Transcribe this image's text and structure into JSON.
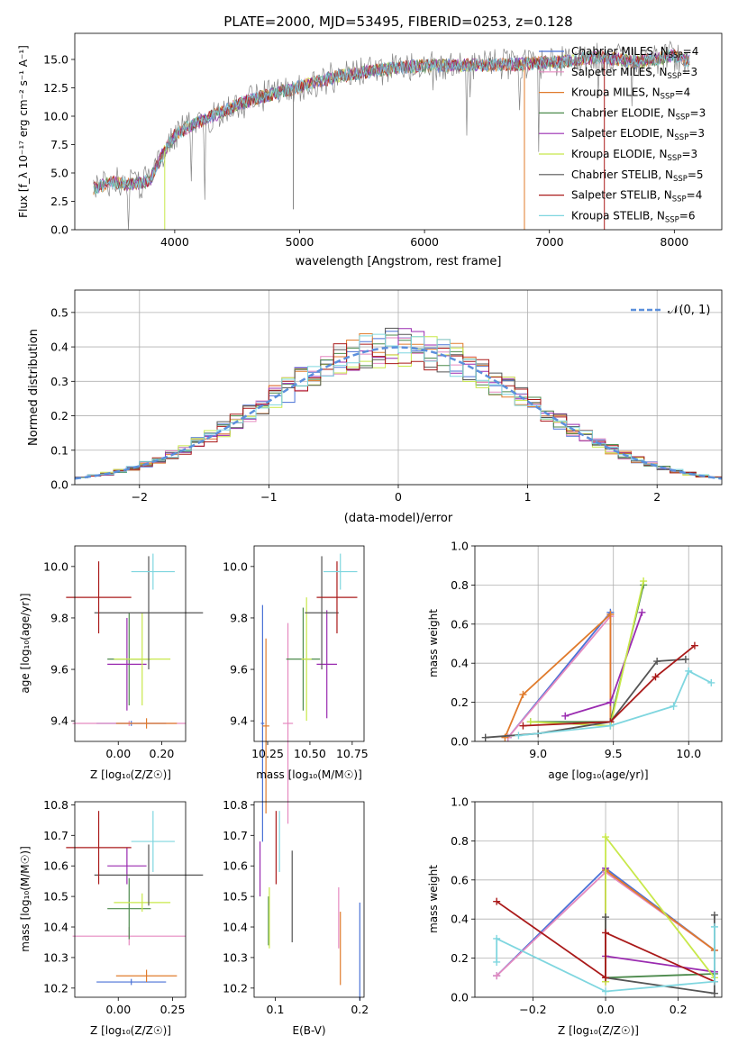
{
  "colors": {
    "chabrier_miles": "#4a72d6",
    "salpeter_miles": "#e58ac0",
    "kroupa_miles": "#e07b2c",
    "chabrier_elodie": "#4c8a4c",
    "salpeter_elodie": "#9a2bb0",
    "kroupa_elodie": "#c8e84a",
    "chabrier_stelib": "#555555",
    "salpeter_stelib": "#aa1a1a",
    "kroupa_stelib": "#7fd6df",
    "normal_curve": "#5b8fdc",
    "spectrum_grey": "#7f7f7f"
  },
  "chart_data": [
    {
      "id": "spectrum",
      "type": "line",
      "title": "PLATE=2000, MJD=53495, FIBERID=0253, z=0.128",
      "xlabel": "wavelength [Angstrom, rest frame]",
      "ylabel": "Flux [f_λ 10⁻¹⁷ erg cm⁻² s⁻¹ A⁻¹]",
      "xlim": [
        3200,
        8380
      ],
      "ylim": [
        0,
        17.3
      ],
      "xticks": [
        4000,
        5000,
        6000,
        7000,
        8000
      ],
      "yticks": [
        0.0,
        2.5,
        5.0,
        7.5,
        10.0,
        12.5,
        15.0
      ],
      "continuum": {
        "x": [
          3350,
          3500,
          3650,
          3800,
          3900,
          4000,
          4100,
          4300,
          4500,
          4700,
          5000,
          5300,
          5600,
          5900,
          6200,
          6500,
          6800,
          7100,
          7400,
          7700,
          8000,
          8100
        ],
        "y": [
          3.6,
          4.2,
          4.0,
          4.3,
          6.6,
          8.3,
          9.0,
          10.0,
          11.0,
          11.7,
          12.6,
          13.5,
          14.0,
          14.4,
          14.5,
          14.5,
          14.6,
          14.8,
          15.2,
          14.8,
          15.3,
          14.9
        ]
      },
      "legend": [
        {
          "label": "Chabrier MILES, N",
          "sub": "SSP",
          "value": "=4",
          "color_key": "chabrier_miles"
        },
        {
          "label": "Salpeter MILES, N",
          "sub": "SSP",
          "value": "=3",
          "color_key": "salpeter_miles"
        },
        {
          "label": "Kroupa MILES, N",
          "sub": "SSP",
          "value": "=4",
          "color_key": "kroupa_miles"
        },
        {
          "label": "Chabrier ELODIE, N",
          "sub": "SSP",
          "value": "=3",
          "color_key": "chabrier_elodie"
        },
        {
          "label": "Salpeter ELODIE, N",
          "sub": "SSP",
          "value": "=3",
          "color_key": "salpeter_elodie"
        },
        {
          "label": "Kroupa ELODIE, N",
          "sub": "SSP",
          "value": "=3",
          "color_key": "kroupa_elodie"
        },
        {
          "label": "Chabrier STELIB, N",
          "sub": "SSP",
          "value": "=5",
          "color_key": "chabrier_stelib"
        },
        {
          "label": "Salpeter STELIB, N",
          "sub": "SSP",
          "value": "=4",
          "color_key": "salpeter_stelib"
        },
        {
          "label": "Kroupa STELIB, N",
          "sub": "SSP",
          "value": "=6",
          "color_key": "kroupa_stelib"
        }
      ]
    },
    {
      "id": "residuals",
      "type": "line",
      "xlabel": "(data-model)/error",
      "ylabel": "Normed distribution",
      "xlim": [
        -2.5,
        2.5
      ],
      "ylim": [
        0,
        0.565
      ],
      "xticks": [
        -2,
        -1,
        0,
        1,
        2
      ],
      "yticks": [
        0.0,
        0.1,
        0.2,
        0.3,
        0.4,
        0.5
      ],
      "grid": true,
      "legend_label": "𝒩(0, 1)",
      "legend_position": "top-right",
      "bin_width": 0.1,
      "gaussian": {
        "mean": 0,
        "sigma": 1
      }
    },
    {
      "id": "z_vs_age",
      "type": "errorbar",
      "xlabel": "Z [log₁₀(Z/Z☉)]",
      "ylabel": "age  [log₁₀(age/yr)]",
      "xlim": [
        -0.2,
        0.31
      ],
      "ylim": [
        9.32,
        10.08
      ],
      "xticks": [
        0.0,
        0.2
      ],
      "yticks": [
        9.4,
        9.6,
        9.8,
        10.0
      ],
      "points": [
        {
          "k": "chabrier_miles",
          "x": 0.06,
          "xerr": 0.16,
          "y": 9.39,
          "yerr": 0.01
        },
        {
          "k": "salpeter_miles",
          "x": 0.05,
          "xerr": 0.26,
          "y": 9.39,
          "yerr": 0.01
        },
        {
          "k": "kroupa_miles",
          "x": 0.13,
          "xerr": 0.14,
          "y": 9.39,
          "yerr": 0.02
        },
        {
          "k": "chabrier_elodie",
          "x": 0.05,
          "xerr": 0.1,
          "y": 9.64,
          "yerr": 0.18
        },
        {
          "k": "salpeter_elodie",
          "x": 0.04,
          "xerr": 0.09,
          "y": 9.62,
          "yerr": 0.18
        },
        {
          "k": "kroupa_elodie",
          "x": 0.11,
          "xerr": 0.13,
          "y": 9.64,
          "yerr": 0.18
        },
        {
          "k": "chabrier_stelib",
          "x": 0.14,
          "xerr": 0.25,
          "y": 9.82,
          "yerr": 0.22
        },
        {
          "k": "salpeter_stelib",
          "x": -0.09,
          "xerr": 0.15,
          "y": 9.88,
          "yerr": 0.14
        },
        {
          "k": "kroupa_stelib",
          "x": 0.16,
          "xerr": 0.1,
          "y": 9.98,
          "yerr": 0.07
        }
      ]
    },
    {
      "id": "mass_vs_age",
      "type": "errorbar",
      "xlabel": "mass [log₁₀(M/M☉)]",
      "xlim": [
        10.17,
        10.82
      ],
      "ylim": [
        9.32,
        10.08
      ],
      "xticks": [
        10.25,
        10.5,
        10.75
      ],
      "yticks": [
        9.4,
        9.6,
        9.8,
        10.0
      ],
      "points": [
        {
          "k": "chabrier_miles",
          "x": 10.22,
          "xerr": 0.01,
          "y": 9.39,
          "yerr": 0.46
        },
        {
          "k": "salpeter_miles",
          "x": 10.37,
          "xerr": 0.03,
          "y": 9.39,
          "yerr": 0.39
        },
        {
          "k": "kroupa_miles",
          "x": 10.24,
          "xerr": 0.02,
          "y": 9.38,
          "yerr": 0.34
        },
        {
          "k": "chabrier_elodie",
          "x": 10.46,
          "xerr": 0.1,
          "y": 9.64,
          "yerr": 0.2
        },
        {
          "k": "salpeter_elodie",
          "x": 10.6,
          "xerr": 0.06,
          "y": 9.62,
          "yerr": 0.21
        },
        {
          "k": "kroupa_elodie",
          "x": 10.48,
          "xerr": 0.03,
          "y": 9.64,
          "yerr": 0.24
        },
        {
          "k": "chabrier_stelib",
          "x": 10.57,
          "xerr": 0.1,
          "y": 9.82,
          "yerr": 0.22
        },
        {
          "k": "salpeter_stelib",
          "x": 10.66,
          "xerr": 0.12,
          "y": 9.88,
          "yerr": 0.14
        },
        {
          "k": "kroupa_stelib",
          "x": 10.68,
          "xerr": 0.1,
          "y": 9.98,
          "yerr": 0.07
        }
      ]
    },
    {
      "id": "age_weight",
      "type": "line",
      "xlabel": "age  [log₁₀(age/yr)]",
      "ylabel": "mass weight",
      "xlim": [
        8.58,
        10.22
      ],
      "ylim": [
        0,
        1.0
      ],
      "xticks": [
        9.0,
        9.5,
        10.0
      ],
      "yticks": [
        0.0,
        0.2,
        0.4,
        0.6,
        0.8,
        1.0
      ],
      "grid": true,
      "series": [
        {
          "k": "chabrier_miles",
          "x": [
            8.8,
            9.48,
            9.48
          ],
          "y": [
            0.02,
            0.66,
            0.1
          ]
        },
        {
          "k": "salpeter_miles",
          "x": [
            8.8,
            9.48,
            9.48
          ],
          "y": [
            0.02,
            0.64,
            0.1
          ]
        },
        {
          "k": "kroupa_miles",
          "x": [
            8.78,
            8.9,
            9.48,
            9.48
          ],
          "y": [
            0.02,
            0.24,
            0.65,
            0.08
          ]
        },
        {
          "k": "chabrier_elodie",
          "x": [
            8.95,
            9.48,
            9.7
          ],
          "y": [
            0.1,
            0.1,
            0.8
          ]
        },
        {
          "k": "salpeter_elodie",
          "x": [
            9.18,
            9.48,
            9.69
          ],
          "y": [
            0.13,
            0.2,
            0.66
          ]
        },
        {
          "k": "kroupa_elodie",
          "x": [
            8.95,
            9.48,
            9.7
          ],
          "y": [
            0.1,
            0.08,
            0.82
          ]
        },
        {
          "k": "chabrier_stelib",
          "x": [
            8.65,
            9.0,
            9.48,
            9.79,
            9.98
          ],
          "y": [
            0.02,
            0.04,
            0.1,
            0.41,
            0.42
          ]
        },
        {
          "k": "salpeter_stelib",
          "x": [
            8.9,
            9.48,
            9.78,
            10.04
          ],
          "y": [
            0.08,
            0.1,
            0.33,
            0.49
          ]
        },
        {
          "k": "kroupa_stelib",
          "x": [
            8.87,
            9.48,
            9.9,
            10.0,
            10.15
          ],
          "y": [
            0.03,
            0.08,
            0.18,
            0.36,
            0.3
          ]
        }
      ]
    },
    {
      "id": "z_vs_mass",
      "type": "errorbar",
      "xlabel": "Z [log₁₀(Z/Z☉)]",
      "ylabel": "mass [log₁₀(M/M☉)]",
      "xlim": [
        -0.2,
        0.31
      ],
      "ylim": [
        10.17,
        10.81
      ],
      "xticks": [
        0.0,
        0.25
      ],
      "yticks": [
        10.2,
        10.3,
        10.4,
        10.5,
        10.6,
        10.7,
        10.8
      ],
      "points": [
        {
          "k": "chabrier_miles",
          "x": 0.06,
          "xerr": 0.16,
          "y": 10.22,
          "yerr": 0.01
        },
        {
          "k": "salpeter_miles",
          "x": 0.05,
          "xerr": 0.26,
          "y": 10.37,
          "yerr": 0.03
        },
        {
          "k": "kroupa_miles",
          "x": 0.13,
          "xerr": 0.14,
          "y": 10.24,
          "yerr": 0.02
        },
        {
          "k": "chabrier_elodie",
          "x": 0.05,
          "xerr": 0.1,
          "y": 10.46,
          "yerr": 0.1
        },
        {
          "k": "salpeter_elodie",
          "x": 0.04,
          "xerr": 0.09,
          "y": 10.6,
          "yerr": 0.06
        },
        {
          "k": "kroupa_elodie",
          "x": 0.11,
          "xerr": 0.13,
          "y": 10.48,
          "yerr": 0.03
        },
        {
          "k": "chabrier_stelib",
          "x": 0.14,
          "xerr": 0.25,
          "y": 10.57,
          "yerr": 0.1
        },
        {
          "k": "salpeter_stelib",
          "x": -0.09,
          "xerr": 0.15,
          "y": 10.66,
          "yerr": 0.12
        },
        {
          "k": "kroupa_stelib",
          "x": 0.16,
          "xerr": 0.1,
          "y": 10.68,
          "yerr": 0.1
        }
      ]
    },
    {
      "id": "ebv_vs_mass",
      "type": "errorbar",
      "xlabel": "E(B-V)",
      "xlim": [
        0.075,
        0.205
      ],
      "ylim": [
        10.17,
        10.81
      ],
      "xticks": [
        0.1,
        0.2
      ],
      "yticks": [
        10.2,
        10.3,
        10.4,
        10.5,
        10.6,
        10.7,
        10.8
      ],
      "points": [
        {
          "k": "chabrier_miles",
          "x": 0.2,
          "xerr": 0,
          "y": 10.32,
          "yerr": 0.16
        },
        {
          "k": "salpeter_miles",
          "x": 0.175,
          "xerr": 0,
          "y": 10.43,
          "yerr": 0.1
        },
        {
          "k": "kroupa_miles",
          "x": 0.177,
          "xerr": 0,
          "y": 10.33,
          "yerr": 0.12
        },
        {
          "k": "chabrier_elodie",
          "x": 0.092,
          "xerr": 0,
          "y": 10.42,
          "yerr": 0.08
        },
        {
          "k": "salpeter_elodie",
          "x": 0.082,
          "xerr": 0,
          "y": 10.59,
          "yerr": 0.09
        },
        {
          "k": "kroupa_elodie",
          "x": 0.093,
          "xerr": 0,
          "y": 10.43,
          "yerr": 0.1
        },
        {
          "k": "chabrier_stelib",
          "x": 0.12,
          "xerr": 0,
          "y": 10.5,
          "yerr": 0.15
        },
        {
          "k": "salpeter_stelib",
          "x": 0.101,
          "xerr": 0,
          "y": 10.66,
          "yerr": 0.12
        },
        {
          "k": "kroupa_stelib",
          "x": 0.105,
          "xerr": 0,
          "y": 10.68,
          "yerr": 0.1
        }
      ]
    },
    {
      "id": "z_weight",
      "type": "line",
      "xlabel": "Z [log₁₀(Z/Z☉)]",
      "ylabel": "mass weight",
      "xlim": [
        -0.36,
        0.32
      ],
      "ylim": [
        0,
        1.0
      ],
      "xticks": [
        -0.2,
        0.0,
        0.2
      ],
      "yticks": [
        0.0,
        0.2,
        0.4,
        0.6,
        0.8,
        1.0
      ],
      "grid": true,
      "series": [
        {
          "k": "chabrier_miles",
          "x": [
            -0.3,
            0.0,
            0.3
          ],
          "y": [
            0.11,
            0.66,
            0.24
          ]
        },
        {
          "k": "salpeter_miles",
          "x": [
            -0.3,
            0.0,
            0.3
          ],
          "y": [
            0.11,
            0.64,
            0.24
          ]
        },
        {
          "k": "kroupa_miles",
          "x": [
            0.0,
            0.0,
            0.3
          ],
          "y": [
            0.08,
            0.65,
            0.24
          ]
        },
        {
          "k": "chabrier_elodie",
          "x": [
            0.0,
            0.0,
            0.3
          ],
          "y": [
            0.1,
            0.1,
            0.12
          ]
        },
        {
          "k": "salpeter_elodie",
          "x": [
            0.0,
            0.0,
            0.3
          ],
          "y": [
            0.66,
            0.21,
            0.13
          ]
        },
        {
          "k": "kroupa_elodie",
          "x": [
            0.0,
            0.0,
            0.3
          ],
          "y": [
            0.08,
            0.82,
            0.1
          ]
        },
        {
          "k": "chabrier_stelib",
          "x": [
            0.0,
            0.0,
            0.3,
            0.3
          ],
          "y": [
            0.41,
            0.1,
            0.02,
            0.42
          ]
        },
        {
          "k": "salpeter_stelib",
          "x": [
            -0.3,
            0.0,
            0.0,
            0.3
          ],
          "y": [
            0.49,
            0.1,
            0.33,
            0.08
          ]
        },
        {
          "k": "kroupa_stelib",
          "x": [
            -0.3,
            -0.3,
            0.0,
            0.3,
            0.3
          ],
          "y": [
            0.18,
            0.3,
            0.03,
            0.08,
            0.36
          ]
        }
      ]
    }
  ]
}
